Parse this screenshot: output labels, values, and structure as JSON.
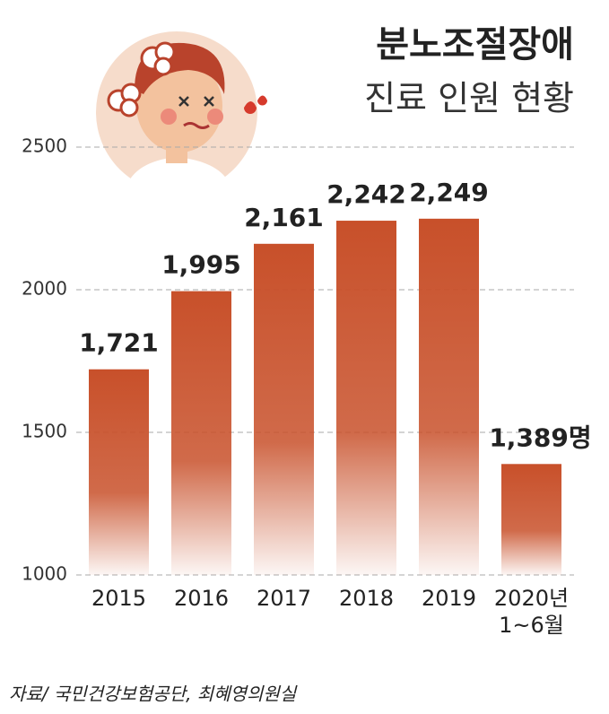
{
  "chart_data": {
    "type": "bar",
    "title": "분노조절장애",
    "subtitle": "진료 인원 현황",
    "categories": [
      "2015",
      "2016",
      "2017",
      "2018",
      "2019",
      "2020년\n1~6월"
    ],
    "values": [
      1721,
      1995,
      2161,
      2242,
      2249,
      1389
    ],
    "value_labels": [
      "1,721",
      "1,995",
      "2,161",
      "2,242",
      "2,249",
      "1,389명"
    ],
    "color": "#c8502a",
    "ylim": [
      1000,
      2500
    ],
    "yticks": [
      1000,
      1500,
      2000,
      2500
    ],
    "grid": true,
    "source": "자료/ 국민건강보험공단, 최혜영의원실"
  }
}
